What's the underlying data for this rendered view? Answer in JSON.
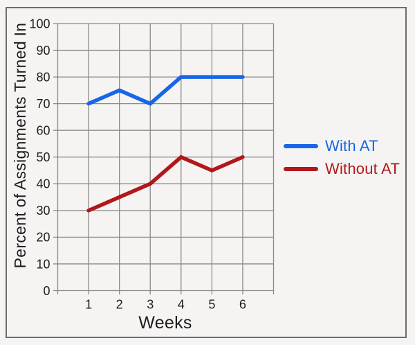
{
  "chart_data": {
    "type": "line",
    "title": "",
    "xlabel": "Weeks",
    "ylabel": "Percent of Assignments Turned In",
    "x": [
      1,
      2,
      3,
      4,
      5,
      6
    ],
    "xlim": [
      0,
      7
    ],
    "ylim": [
      0,
      100
    ],
    "ytick_step": 10,
    "grid": true,
    "legend_position": "right-of-plot",
    "series": [
      {
        "name": "With AT",
        "color": "#1766e8",
        "values": [
          70,
          75,
          70,
          80,
          80,
          80
        ]
      },
      {
        "name": "Without AT",
        "color": "#b2171b",
        "values": [
          30,
          35,
          40,
          50,
          45,
          50
        ]
      }
    ]
  },
  "colors": {
    "background": "#f5f4f2",
    "frame_border": "#6b6c6e",
    "grid": "#8a8a8a",
    "text": "#1d1d1f"
  }
}
